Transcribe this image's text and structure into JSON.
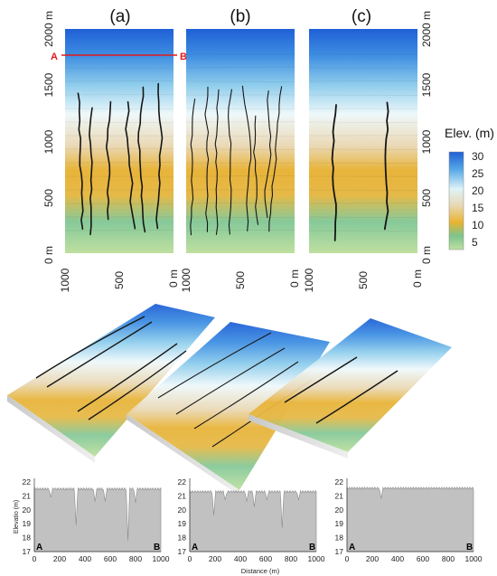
{
  "panels": [
    {
      "label": "(a)"
    },
    {
      "label": "(b)"
    },
    {
      "label": "(c)"
    }
  ],
  "map_y_ticks": [
    "0 m",
    "500",
    "1000",
    "1500",
    "2000 m"
  ],
  "map_x_ticks": [
    "1000",
    "500",
    "0 m"
  ],
  "section_line": {
    "start": "A",
    "end": "B",
    "color": "#e31a1c"
  },
  "legend": {
    "title": "Elev. (m)",
    "ticks": [
      "30",
      "25",
      "20",
      "15",
      "10",
      "5"
    ],
    "colors": [
      "#1f5fd6",
      "#56a8e6",
      "#dff3f8",
      "#e8d7b2",
      "#e9b431",
      "#7cc48c",
      "#bfe0a0"
    ]
  },
  "profile_axes": {
    "ylabel": "Elevatio (m)",
    "xlabel": "Distance (m)",
    "y_ticks": [
      "22",
      "21",
      "20",
      "19",
      "18",
      "17"
    ],
    "x_ticks": [
      "0",
      "200",
      "400",
      "600",
      "800",
      "1000"
    ],
    "start": "A",
    "end": "B"
  },
  "profiles": [
    {
      "panel": "a",
      "baseline": 21.5,
      "valleys": [
        [
          130,
          20.9
        ],
        [
          330,
          18.9
        ],
        [
          480,
          20.6
        ],
        [
          560,
          20.6
        ],
        [
          740,
          17.8
        ],
        [
          800,
          20.5
        ]
      ]
    },
    {
      "panel": "b",
      "baseline": 21.3,
      "valleys": [
        [
          190,
          19.6
        ],
        [
          280,
          20.7
        ],
        [
          450,
          20.6
        ],
        [
          510,
          20.2
        ],
        [
          610,
          20.7
        ],
        [
          730,
          18.7
        ],
        [
          860,
          20.7
        ]
      ]
    },
    {
      "panel": "c",
      "baseline": 21.55,
      "valleys": [
        [
          270,
          20.8
        ]
      ]
    }
  ]
}
